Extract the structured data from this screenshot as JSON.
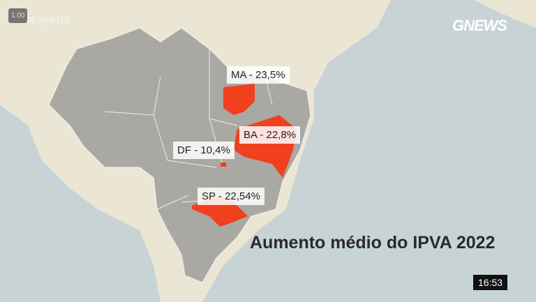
{
  "badge": "1.00",
  "hashtag": "#Edição16",
  "logo": "GNEWS",
  "title": "Aumento médio do IPVA 2022",
  "clock": "16:53",
  "regions": [
    {
      "label": "MA - 23,5%"
    },
    {
      "label": "BA - 22,8%"
    },
    {
      "label": "DF - 10,4%"
    },
    {
      "label": "SP - 22,54%"
    }
  ]
}
